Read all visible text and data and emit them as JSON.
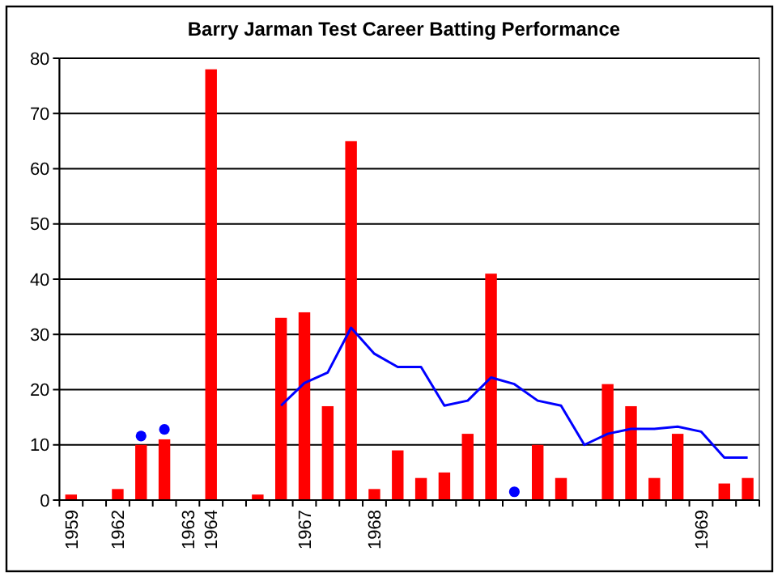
{
  "chart_data": {
    "type": "bar",
    "title": "Barry Jarman Test Career Batting Performance",
    "categories": [
      "1959",
      null,
      "1962",
      null,
      null,
      "1963",
      "1964",
      null,
      null,
      null,
      "1967",
      null,
      null,
      "1968",
      null,
      null,
      null,
      null,
      null,
      null,
      null,
      null,
      null,
      null,
      null,
      null,
      null,
      "1969",
      null,
      null
    ],
    "series": [
      {
        "color": "#ff0000",
        "values": [
          1,
          null,
          2,
          10,
          11,
          null,
          78,
          null,
          1,
          33,
          34,
          17,
          65,
          2,
          9,
          4,
          5,
          12,
          41,
          null,
          10,
          4,
          null,
          21,
          17,
          4,
          12,
          null,
          3,
          4
        ]
      },
      {
        "type": "line",
        "color": "#0000ff",
        "values": [
          null,
          null,
          null,
          null,
          null,
          null,
          null,
          null,
          null,
          17.1,
          21.2,
          23.1,
          31.2,
          26.5,
          24.1,
          24.1,
          17.1,
          18,
          22.2,
          21,
          18,
          17.1,
          10,
          12,
          12.9,
          12.9,
          13.3,
          12.4,
          7.7,
          7.7
        ]
      },
      {
        "type": "scatter",
        "color": "#0000ff",
        "marker": "circle",
        "values": [
          null,
          null,
          null,
          11.6,
          12.8,
          null,
          null,
          null,
          null,
          null,
          null,
          null,
          null,
          null,
          null,
          null,
          null,
          null,
          null,
          1.5,
          null,
          null,
          null,
          null,
          null,
          null,
          null,
          null,
          null,
          null
        ]
      }
    ],
    "ylim": [
      0,
      80
    ],
    "yticks": [
      0,
      10,
      20,
      30,
      40,
      50,
      60,
      70,
      80
    ],
    "grid": "y"
  }
}
